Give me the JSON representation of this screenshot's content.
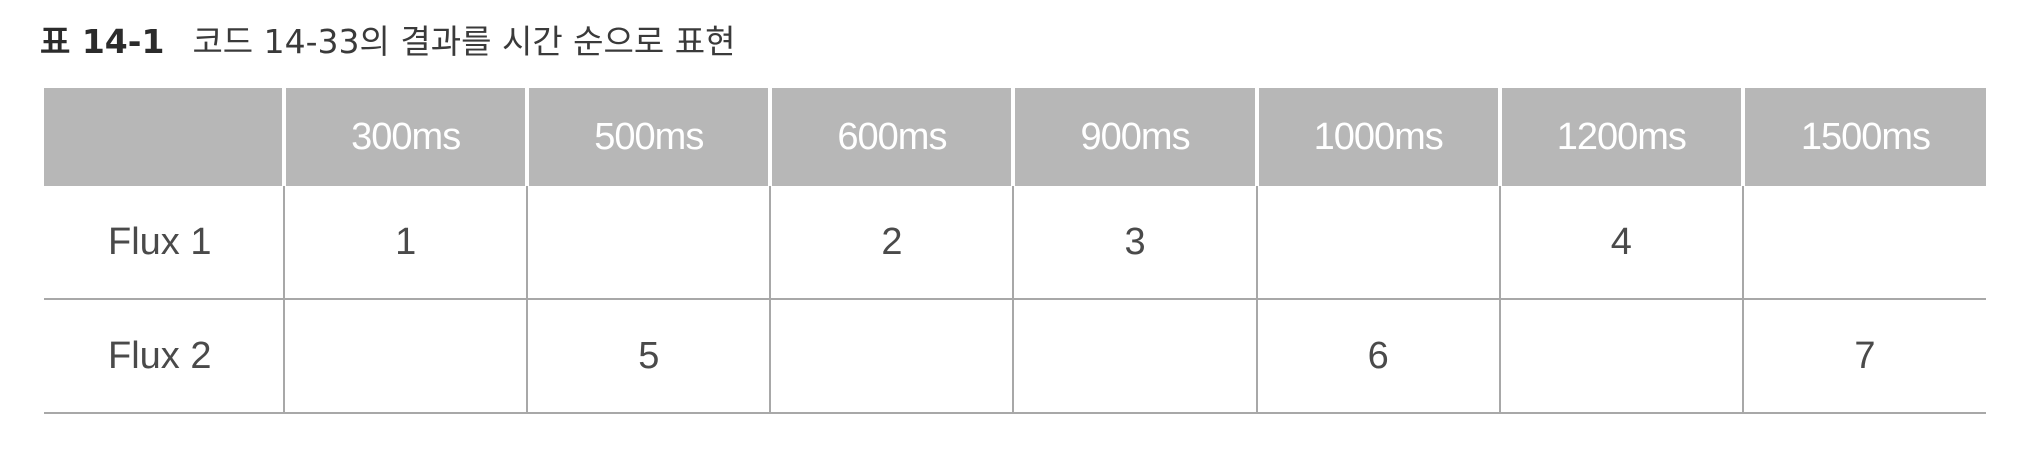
{
  "caption": {
    "label": "표 14-1",
    "title": "코드 14-33의 결과를 시간 순으로 표현"
  },
  "table": {
    "headers": [
      "",
      "300ms",
      "500ms",
      "600ms",
      "900ms",
      "1000ms",
      "1200ms",
      "1500ms"
    ],
    "rows": [
      [
        "Flux 1",
        "1",
        "",
        "2",
        "3",
        "",
        "4",
        ""
      ],
      [
        "Flux 2",
        "",
        "5",
        "",
        "",
        "6",
        "",
        "7"
      ]
    ]
  }
}
